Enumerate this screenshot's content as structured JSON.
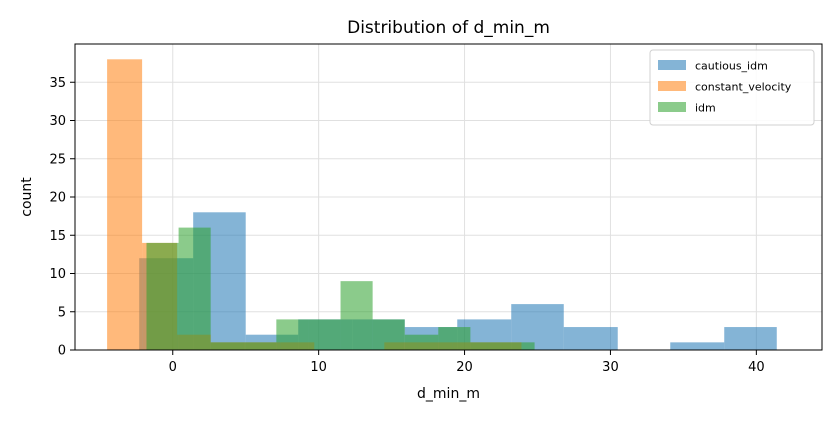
{
  "chart_data": {
    "type": "histogram",
    "title": "Distribution of d_min_m",
    "xlabel": "d_min_m",
    "ylabel": "count",
    "xlim": [
      -6.7,
      44.5
    ],
    "ylim": [
      0,
      40
    ],
    "xticks": [
      0,
      10,
      20,
      30,
      40
    ],
    "yticks": [
      0,
      5,
      10,
      15,
      20,
      25,
      30,
      35
    ],
    "grid": true,
    "legend_position": "top-right",
    "series": [
      {
        "name": "cautious_idm",
        "color": "#1f77b4",
        "bins": [
          {
            "x0": -2.3,
            "x1": 1.4,
            "count": 12
          },
          {
            "x0": 1.4,
            "x1": 5.0,
            "count": 18
          },
          {
            "x0": 5.0,
            "x1": 8.6,
            "count": 2
          },
          {
            "x0": 8.6,
            "x1": 12.3,
            "count": 4
          },
          {
            "x0": 12.3,
            "x1": 15.9,
            "count": 4
          },
          {
            "x0": 15.9,
            "x1": 19.5,
            "count": 3
          },
          {
            "x0": 19.5,
            "x1": 23.2,
            "count": 4
          },
          {
            "x0": 23.2,
            "x1": 26.8,
            "count": 6
          },
          {
            "x0": 26.8,
            "x1": 30.5,
            "count": 3
          },
          {
            "x0": 30.5,
            "x1": 34.1,
            "count": 0
          },
          {
            "x0": 34.1,
            "x1": 37.8,
            "count": 1
          },
          {
            "x0": 37.8,
            "x1": 41.4,
            "count": 3
          }
        ]
      },
      {
        "name": "constant_velocity",
        "color": "#ff7f0e",
        "bins": [
          {
            "x0": -4.5,
            "x1": -2.1,
            "count": 38
          },
          {
            "x0": -2.1,
            "x1": 0.3,
            "count": 14
          },
          {
            "x0": 0.3,
            "x1": 2.6,
            "count": 2
          },
          {
            "x0": 2.6,
            "x1": 5.0,
            "count": 1
          },
          {
            "x0": 5.0,
            "x1": 7.4,
            "count": 1
          },
          {
            "x0": 7.4,
            "x1": 9.7,
            "count": 1
          },
          {
            "x0": 9.7,
            "x1": 12.1,
            "count": 0
          },
          {
            "x0": 12.1,
            "x1": 14.5,
            "count": 0
          },
          {
            "x0": 14.5,
            "x1": 16.8,
            "count": 1
          },
          {
            "x0": 16.8,
            "x1": 19.2,
            "count": 1
          },
          {
            "x0": 19.2,
            "x1": 21.6,
            "count": 1
          },
          {
            "x0": 21.6,
            "x1": 23.9,
            "count": 1
          }
        ]
      },
      {
        "name": "idm",
        "color": "#2ca02c",
        "bins": [
          {
            "x0": -1.8,
            "x1": 0.4,
            "count": 14
          },
          {
            "x0": 0.4,
            "x1": 2.6,
            "count": 16
          },
          {
            "x0": 2.6,
            "x1": 4.9,
            "count": 1
          },
          {
            "x0": 4.9,
            "x1": 7.1,
            "count": 1
          },
          {
            "x0": 7.1,
            "x1": 9.3,
            "count": 4
          },
          {
            "x0": 9.3,
            "x1": 11.5,
            "count": 4
          },
          {
            "x0": 11.5,
            "x1": 13.7,
            "count": 9
          },
          {
            "x0": 13.7,
            "x1": 15.9,
            "count": 4
          },
          {
            "x0": 15.9,
            "x1": 18.2,
            "count": 2
          },
          {
            "x0": 18.2,
            "x1": 20.4,
            "count": 3
          },
          {
            "x0": 20.4,
            "x1": 22.6,
            "count": 1
          },
          {
            "x0": 22.6,
            "x1": 24.8,
            "count": 1
          }
        ]
      }
    ]
  }
}
